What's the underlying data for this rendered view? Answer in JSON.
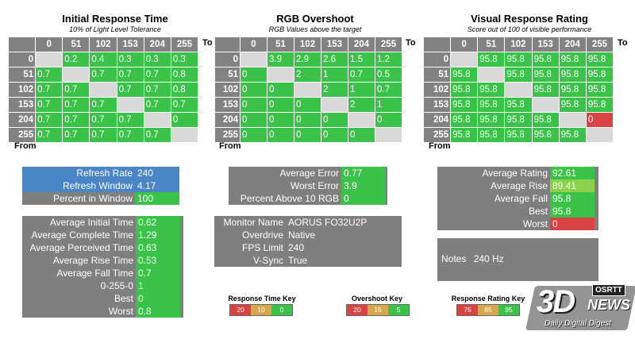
{
  "matrices": [
    {
      "title": "Initial Response Time",
      "subtitle": "10% of Light Level Tolerance",
      "cols": [
        "0",
        "51",
        "102",
        "153",
        "204",
        "255"
      ],
      "rows": [
        {
          "label": "0",
          "cells": [
            "",
            "0.2",
            "0.4",
            "0.3",
            "0.3",
            "0.3"
          ],
          "status": [
            "d",
            "g",
            "g",
            "g",
            "g",
            "g"
          ]
        },
        {
          "label": "51",
          "cells": [
            "0.7",
            "",
            "0.7",
            "0.7",
            "0.7",
            "0.8"
          ],
          "status": [
            "g",
            "d",
            "g",
            "g",
            "g",
            "g"
          ]
        },
        {
          "label": "102",
          "cells": [
            "0.7",
            "0.7",
            "",
            "0.7",
            "0.7",
            "0.8"
          ],
          "status": [
            "g",
            "g",
            "d",
            "g",
            "g",
            "g"
          ]
        },
        {
          "label": "153",
          "cells": [
            "0.7",
            "0.7",
            "0.7",
            "",
            "0.7",
            "0.7"
          ],
          "status": [
            "g",
            "g",
            "g",
            "d",
            "g",
            "g"
          ]
        },
        {
          "label": "204",
          "cells": [
            "0.7",
            "0.7",
            "0.7",
            "0.7",
            "",
            "0"
          ],
          "status": [
            "g",
            "g",
            "g",
            "g",
            "d",
            "g"
          ]
        },
        {
          "label": "255",
          "cells": [
            "0.7",
            "0.7",
            "0.7",
            "0.7",
            "0.7",
            ""
          ],
          "status": [
            "g",
            "g",
            "g",
            "g",
            "g",
            "d"
          ]
        }
      ],
      "to_label": "To",
      "from_label": "From"
    },
    {
      "title": "RGB Overshoot",
      "subtitle": "RGB Values above the target",
      "cols": [
        "0",
        "51",
        "102",
        "153",
        "204",
        "255"
      ],
      "rows": [
        {
          "label": "0",
          "cells": [
            "",
            "3.9",
            "2.9",
            "2.6",
            "1.5",
            "1.2"
          ],
          "status": [
            "d",
            "g",
            "g",
            "g",
            "g",
            "g"
          ]
        },
        {
          "label": "51",
          "cells": [
            "0",
            "",
            "2",
            "1",
            "0.7",
            "0.5"
          ],
          "status": [
            "g",
            "d",
            "g",
            "g",
            "g",
            "g"
          ]
        },
        {
          "label": "102",
          "cells": [
            "0",
            "0",
            "",
            "2",
            "1",
            "0.7"
          ],
          "status": [
            "g",
            "g",
            "d",
            "g",
            "g",
            "g"
          ]
        },
        {
          "label": "153",
          "cells": [
            "0",
            "0",
            "0",
            "",
            "2",
            "1"
          ],
          "status": [
            "g",
            "g",
            "g",
            "d",
            "g",
            "g"
          ]
        },
        {
          "label": "204",
          "cells": [
            "0",
            "0",
            "0",
            "0",
            "",
            "0"
          ],
          "status": [
            "g",
            "g",
            "g",
            "g",
            "d",
            "g"
          ]
        },
        {
          "label": "255",
          "cells": [
            "0",
            "0",
            "0",
            "0",
            "0",
            ""
          ],
          "status": [
            "g",
            "g",
            "g",
            "g",
            "g",
            "d"
          ]
        }
      ],
      "to_label": "To",
      "from_label": "From"
    },
    {
      "title": "Visual Response Rating",
      "subtitle": "Score out of 100 of visible performance",
      "cols": [
        "0",
        "51",
        "102",
        "153",
        "204",
        "255"
      ],
      "rows": [
        {
          "label": "0",
          "cells": [
            "",
            "95.8",
            "95.8",
            "95.8",
            "95.8",
            "95.8"
          ],
          "status": [
            "d",
            "g",
            "g",
            "g",
            "g",
            "g"
          ]
        },
        {
          "label": "51",
          "cells": [
            "95.8",
            "",
            "95.8",
            "95.8",
            "95.8",
            "95.8"
          ],
          "status": [
            "g",
            "d",
            "g",
            "g",
            "g",
            "g"
          ]
        },
        {
          "label": "102",
          "cells": [
            "95.8",
            "95.8",
            "",
            "95.8",
            "95.8",
            "95.8"
          ],
          "status": [
            "g",
            "g",
            "d",
            "g",
            "g",
            "g"
          ]
        },
        {
          "label": "153",
          "cells": [
            "95.8",
            "95.8",
            "95.8",
            "",
            "95.8",
            "95.8"
          ],
          "status": [
            "g",
            "g",
            "g",
            "d",
            "g",
            "g"
          ]
        },
        {
          "label": "204",
          "cells": [
            "95.8",
            "95.8",
            "95.8",
            "95.8",
            "",
            "0"
          ],
          "status": [
            "g",
            "g",
            "g",
            "g",
            "d",
            "r"
          ]
        },
        {
          "label": "255",
          "cells": [
            "95.8",
            "95.8",
            "95.8",
            "95.8",
            "95.8",
            ""
          ],
          "status": [
            "g",
            "g",
            "g",
            "g",
            "g",
            "d"
          ]
        }
      ],
      "to_label": "To",
      "from_label": "From"
    }
  ],
  "refresh_panel": {
    "items": [
      {
        "key": "Refresh Rate",
        "value": "240"
      },
      {
        "key": "Refresh Window",
        "value": "4.17"
      },
      {
        "key": "Percent in Window",
        "value": "100"
      }
    ],
    "blue": "#4a86c5"
  },
  "error_panel": {
    "items": [
      {
        "key": "Average Error",
        "value": "0.77"
      },
      {
        "key": "Worst Error",
        "value": "3.9"
      },
      {
        "key": "Percent Above 10 RGB",
        "value": "0"
      }
    ]
  },
  "rating_panel": {
    "items": [
      {
        "key": "Average Rating",
        "value": "92.61",
        "status": "g"
      },
      {
        "key": "Average Rise",
        "value": "89.41",
        "status": "l"
      },
      {
        "key": "Average Fall",
        "value": "95.8",
        "status": "g"
      },
      {
        "key": "Best",
        "value": "95.8",
        "status": "g"
      },
      {
        "key": "Worst",
        "value": "0",
        "status": "r"
      }
    ]
  },
  "time_panel": {
    "items": [
      {
        "key": "Average Initial Time",
        "value": "0.62"
      },
      {
        "key": "Average Complete Time",
        "value": "1.29"
      },
      {
        "key": "Average Perceived Time",
        "value": "0.63"
      },
      {
        "key": "Average Rise Time",
        "value": "0.53"
      },
      {
        "key": "Average Fall Time",
        "value": "0.7"
      },
      {
        "key": "0-255-0",
        "value": "1"
      },
      {
        "key": "Best",
        "value": "0"
      },
      {
        "key": "Worst",
        "value": "0.8"
      }
    ]
  },
  "monitor_panel": {
    "items": [
      {
        "key": "Monitor Name",
        "value": "AORUS FO32U2P"
      },
      {
        "key": "Overdrive",
        "value": "Native"
      },
      {
        "key": "FPS Limit",
        "value": "240"
      },
      {
        "key": "V-Sync",
        "value": "True"
      }
    ]
  },
  "notes_panel": {
    "key": "Notes",
    "value": "240 Hz"
  },
  "keys": [
    {
      "title": "Response Time Key",
      "values": [
        "20",
        "10",
        "0"
      ]
    },
    {
      "title": "Overshoot Key",
      "values": [
        "20",
        "15",
        "5"
      ]
    },
    {
      "title": "Response Rating Key",
      "values": [
        "75",
        "85",
        "95"
      ]
    }
  ],
  "logo": {
    "brand": "3D",
    "sub": "NEWS",
    "tag": "Daily Digital Digest",
    "badge": "OSRTT"
  },
  "colors": {
    "green": "#3bc248",
    "light_green": "#8bd14a",
    "red": "#d94343",
    "gray": "#7f7f7f",
    "amber": "#d6a84e"
  }
}
